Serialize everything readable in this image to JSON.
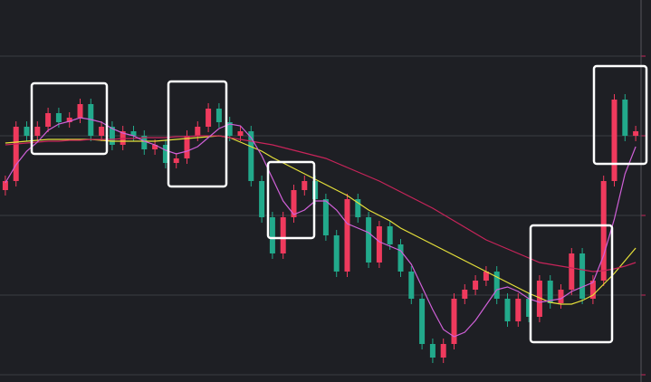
{
  "chart_data": {
    "type": "candlestick",
    "open": [
      212,
      222,
      282,
      272,
      282,
      297,
      287,
      292,
      307,
      272,
      282,
      262,
      277,
      272,
      257,
      262,
      242,
      247,
      272,
      282,
      302,
      287,
      272,
      277,
      222,
      182,
      142,
      182,
      212,
      222,
      202,
      162,
      122,
      202,
      182,
      132,
      172,
      152,
      122,
      92,
      42,
      27,
      42,
      92,
      102,
      112,
      122,
      92,
      67,
      92,
      72,
      112,
      87,
      102,
      142,
      92,
      112,
      222,
      312,
      272
    ],
    "high": [
      228,
      288,
      288,
      288,
      303,
      303,
      298,
      313,
      313,
      288,
      288,
      283,
      283,
      278,
      268,
      268,
      253,
      278,
      288,
      308,
      308,
      293,
      283,
      283,
      228,
      188,
      188,
      218,
      228,
      228,
      208,
      168,
      208,
      208,
      188,
      178,
      178,
      158,
      128,
      98,
      48,
      48,
      98,
      108,
      118,
      128,
      128,
      98,
      98,
      98,
      118,
      118,
      108,
      148,
      148,
      118,
      228,
      318,
      318,
      283
    ],
    "low": [
      206,
      216,
      266,
      266,
      276,
      281,
      281,
      286,
      266,
      266,
      256,
      256,
      266,
      251,
      251,
      236,
      236,
      241,
      266,
      276,
      281,
      266,
      266,
      216,
      176,
      136,
      136,
      176,
      206,
      196,
      156,
      116,
      116,
      176,
      126,
      126,
      146,
      116,
      86,
      36,
      21,
      21,
      36,
      86,
      96,
      106,
      86,
      61,
      61,
      66,
      66,
      81,
      81,
      96,
      86,
      86,
      106,
      216,
      266,
      266
    ],
    "close": [
      222,
      282,
      272,
      282,
      297,
      287,
      292,
      307,
      272,
      282,
      262,
      277,
      272,
      257,
      262,
      242,
      247,
      272,
      282,
      302,
      287,
      272,
      277,
      222,
      182,
      142,
      182,
      212,
      222,
      202,
      162,
      122,
      202,
      182,
      132,
      172,
      152,
      122,
      92,
      42,
      27,
      42,
      92,
      102,
      112,
      122,
      92,
      67,
      92,
      72,
      112,
      87,
      102,
      142,
      92,
      112,
      222,
      312,
      272,
      277
    ],
    "up_color": "#ef3a5d",
    "down_color": "#22a98b",
    "series": [
      {
        "color": "#e6e03a",
        "values": [
          264,
          265,
          266,
          267,
          268,
          268,
          268,
          268,
          268,
          267,
          266,
          266,
          266,
          266,
          266,
          267,
          268,
          269,
          270,
          271,
          272,
          270,
          265,
          260,
          255,
          248,
          242,
          236,
          230,
          224,
          218,
          212,
          206,
          198,
          190,
          184,
          178,
          170,
          164,
          158,
          152,
          146,
          140,
          134,
          128,
          122,
          116,
          110,
          104,
          98,
          93,
          88,
          86,
          86,
          90,
          96,
          108,
          120,
          134,
          148
        ]
      },
      {
        "color": "#c8245a",
        "values": [
          262,
          263,
          264,
          265,
          266,
          266,
          267,
          267,
          268,
          268,
          268,
          269,
          269,
          270,
          270,
          270,
          271,
          271,
          272,
          272,
          272,
          270,
          268,
          266,
          264,
          262,
          259,
          256,
          253,
          250,
          247,
          242,
          237,
          232,
          227,
          222,
          216,
          210,
          204,
          198,
          192,
          185,
          178,
          171,
          164,
          157,
          152,
          147,
          142,
          137,
          132,
          130,
          128,
          126,
          124,
          122,
          123,
          125,
          128,
          132
        ]
      },
      {
        "color": "#d060d8",
        "values": [
          220,
          240,
          255,
          265,
          278,
          285,
          288,
          292,
          290,
          287,
          280,
          275,
          272,
          266,
          262,
          256,
          252,
          255,
          260,
          270,
          280,
          285,
          283,
          270,
          250,
          225,
          200,
          185,
          190,
          200,
          200,
          190,
          175,
          170,
          165,
          155,
          150,
          145,
          130,
          105,
          80,
          58,
          50,
          55,
          68,
          85,
          102,
          105,
          100,
          92,
          88,
          90,
          92,
          100,
          105,
          110,
          140,
          180,
          230,
          260
        ]
      }
    ],
    "ylim": [
      0,
      422
    ],
    "yticks": [
      8,
      96,
      184,
      272,
      360
    ],
    "grid": true
  }
}
